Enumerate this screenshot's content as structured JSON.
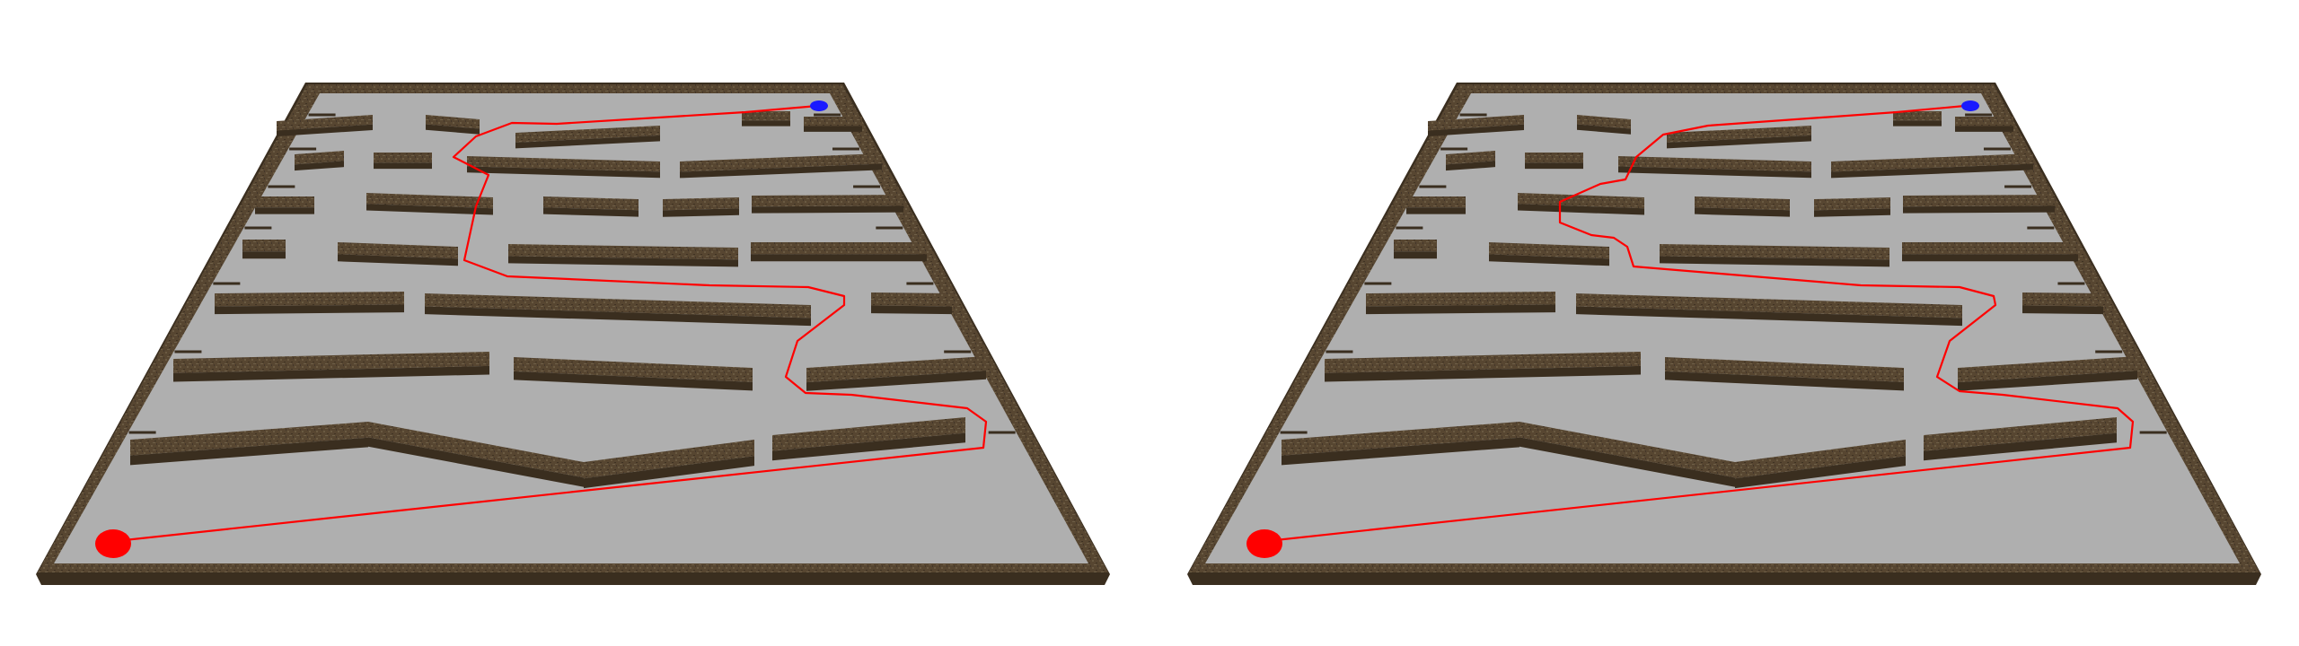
{
  "scene": {
    "panels": [
      {
        "id": "left",
        "path_variant": "A"
      },
      {
        "id": "right",
        "path_variant": "B"
      }
    ]
  },
  "colors": {
    "floor": "#afafaf",
    "wall_top": "#5a4a33",
    "wall_side": "#3a2e1f",
    "path": "#ff0000",
    "start_marker": "#ff0000",
    "goal_marker": "#1a1aff",
    "background": "#ffffff"
  },
  "markers": {
    "start": {
      "shape": "ellipse",
      "color_key": "start_marker"
    },
    "goal": {
      "shape": "ellipse",
      "color_key": "goal_marker"
    }
  }
}
